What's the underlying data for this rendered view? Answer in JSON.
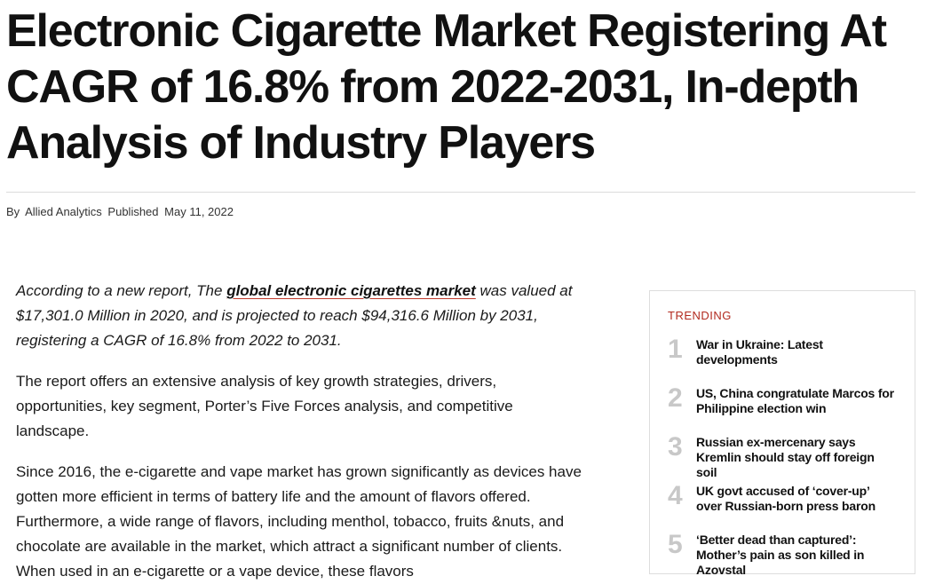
{
  "article": {
    "headline": "Electronic Cigarette Market Registering At CAGR of 16.8% from 2022-2031, In-depth Analysis of Industry Players",
    "byline": {
      "by_label": "By",
      "author": "Allied Analytics",
      "published_label": "Published",
      "date": "May 11, 2022"
    },
    "intro": {
      "prefix": "According to a new report, The ",
      "link_text": "global electronic cigarettes market",
      "suffix": " was valued at $17,301.0 Million in 2020, and is projected to reach $94,316.6 Million by 2031, registering a CAGR of 16.8% from 2022 to 2031."
    },
    "paragraphs": [
      "The report offers an extensive analysis of key growth strategies, drivers, opportunities, key segment, Porter’s Five Forces analysis, and competitive landscape.",
      "Since 2016, the e-cigarette and vape market has grown significantly as devices have gotten more efficient in terms of battery life and the amount of flavors offered. Furthermore, a wide range of flavors, including menthol, tobacco, fruits &nuts, and chocolate are available in the market, which attract a significant number of clients. When used in an e-cigarette or a vape device, these flavors"
    ]
  },
  "trending": {
    "title": "TRENDING",
    "items": [
      {
        "num": "1",
        "text": "War in Ukraine: Latest developments"
      },
      {
        "num": "2",
        "text": "US, China congratulate Marcos for Philippine election win"
      },
      {
        "num": "3",
        "text": "Russian ex-mercenary says Kremlin should stay off foreign soil"
      },
      {
        "num": "4",
        "text": "UK govt accused of ‘cover-up’ over Russian-born press baron"
      },
      {
        "num": "5",
        "text": "‘Better dead than captured’: Mother’s pain as son killed in Azovstal"
      }
    ]
  },
  "colors": {
    "accent": "#b22a1f",
    "link_underline": "#c0392b",
    "trend_number": "#c8c8c8"
  }
}
